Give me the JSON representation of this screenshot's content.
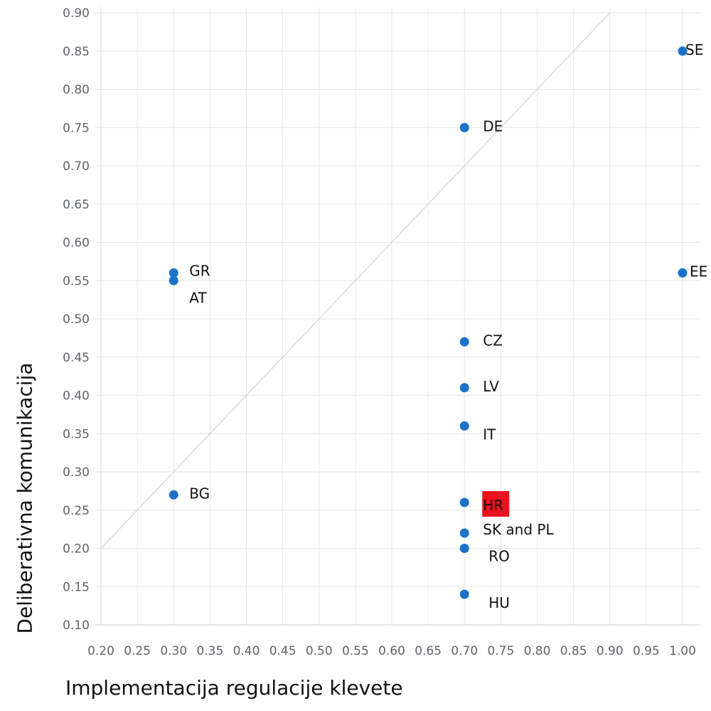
{
  "chart_data": {
    "type": "scatter",
    "xlabel": "Implementacija regulacije klevete",
    "ylabel": "Deliberativna komunikacija",
    "xlim": [
      0.2,
      1.0
    ],
    "ylim": [
      0.1,
      0.9
    ],
    "x_ticks": [
      "0.20",
      "0.25",
      "0.30",
      "0.35",
      "0.40",
      "0.45",
      "0.50",
      "0.55",
      "0.60",
      "0.65",
      "0.70",
      "0.75",
      "0.80",
      "0.85",
      "0.90",
      "0.95",
      "1.00"
    ],
    "y_ticks": [
      "0.10",
      "0.15",
      "0.20",
      "0.25",
      "0.30",
      "0.35",
      "0.40",
      "0.45",
      "0.50",
      "0.55",
      "0.60",
      "0.65",
      "0.70",
      "0.75",
      "0.80",
      "0.85",
      "0.90"
    ],
    "grid": true,
    "reference_line": "diagonal",
    "point_color": "#1a73c8",
    "highlight_color": "#e8141e",
    "points": [
      {
        "label": "SE",
        "x": 1.0,
        "y": 0.85
      },
      {
        "label": "DE",
        "x": 0.7,
        "y": 0.75
      },
      {
        "label": "GR",
        "x": 0.3,
        "y": 0.56
      },
      {
        "label": "AT",
        "x": 0.3,
        "y": 0.55
      },
      {
        "label": "EE",
        "x": 1.0,
        "y": 0.56
      },
      {
        "label": "CZ",
        "x": 0.7,
        "y": 0.47
      },
      {
        "label": "LV",
        "x": 0.7,
        "y": 0.41
      },
      {
        "label": "IT",
        "x": 0.7,
        "y": 0.36
      },
      {
        "label": "BG",
        "x": 0.3,
        "y": 0.27
      },
      {
        "label": "HR",
        "x": 0.7,
        "y": 0.26,
        "highlight": true
      },
      {
        "label": "SK and PL",
        "x": 0.7,
        "y": 0.22
      },
      {
        "label": "RO",
        "x": 0.7,
        "y": 0.2
      },
      {
        "label": "HU",
        "x": 0.7,
        "y": 0.14
      }
    ]
  }
}
